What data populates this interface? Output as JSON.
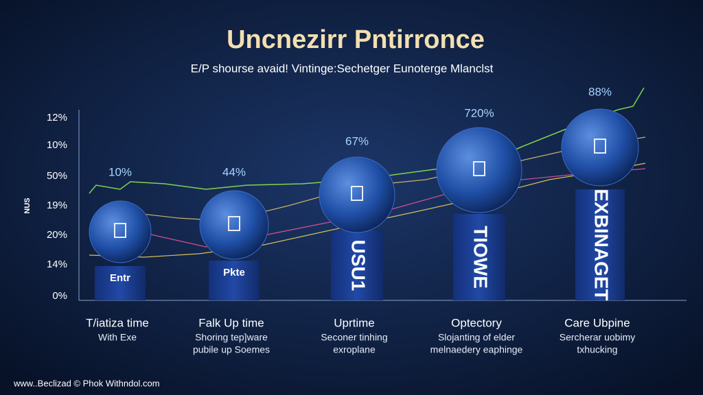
{
  "header": {
    "title": "Uncnezirr Pntirronce",
    "subtitle": "E/P shourse avaid! Vintinge:Sechetger Eunoterge Mlanclst"
  },
  "axis": {
    "side_label": "NUS",
    "labels": [
      "12%",
      "10%",
      "50%",
      "19%",
      "20%",
      "14%",
      "0%"
    ]
  },
  "columns": [
    {
      "percent": "10%",
      "bar_text": "Entr",
      "heading": "T/iatiza time",
      "lines": [
        "With Exe"
      ]
    },
    {
      "percent": "44%",
      "bar_text": "Pkte",
      "heading": "Falk Up time",
      "lines": [
        "Shoring tep]ware",
        "pubile up Soemes"
      ]
    },
    {
      "percent": "67%",
      "bar_text": "USU1",
      "heading": "Uprtime",
      "lines": [
        "Seconer tinhing",
        "exroplane"
      ]
    },
    {
      "percent": "720%",
      "bar_text": "TIOWE",
      "heading": "Optectory",
      "lines": [
        "Slojanting of elder",
        "melnaedery eaphinge"
      ]
    },
    {
      "percent": "88%",
      "bar_text": "EXBINAGET",
      "heading": "Care Ubpine",
      "lines": [
        "Sercherar uobimy",
        "txhucking"
      ]
    }
  ],
  "footer": "www..Beclizad © Phok Withndol.com"
}
